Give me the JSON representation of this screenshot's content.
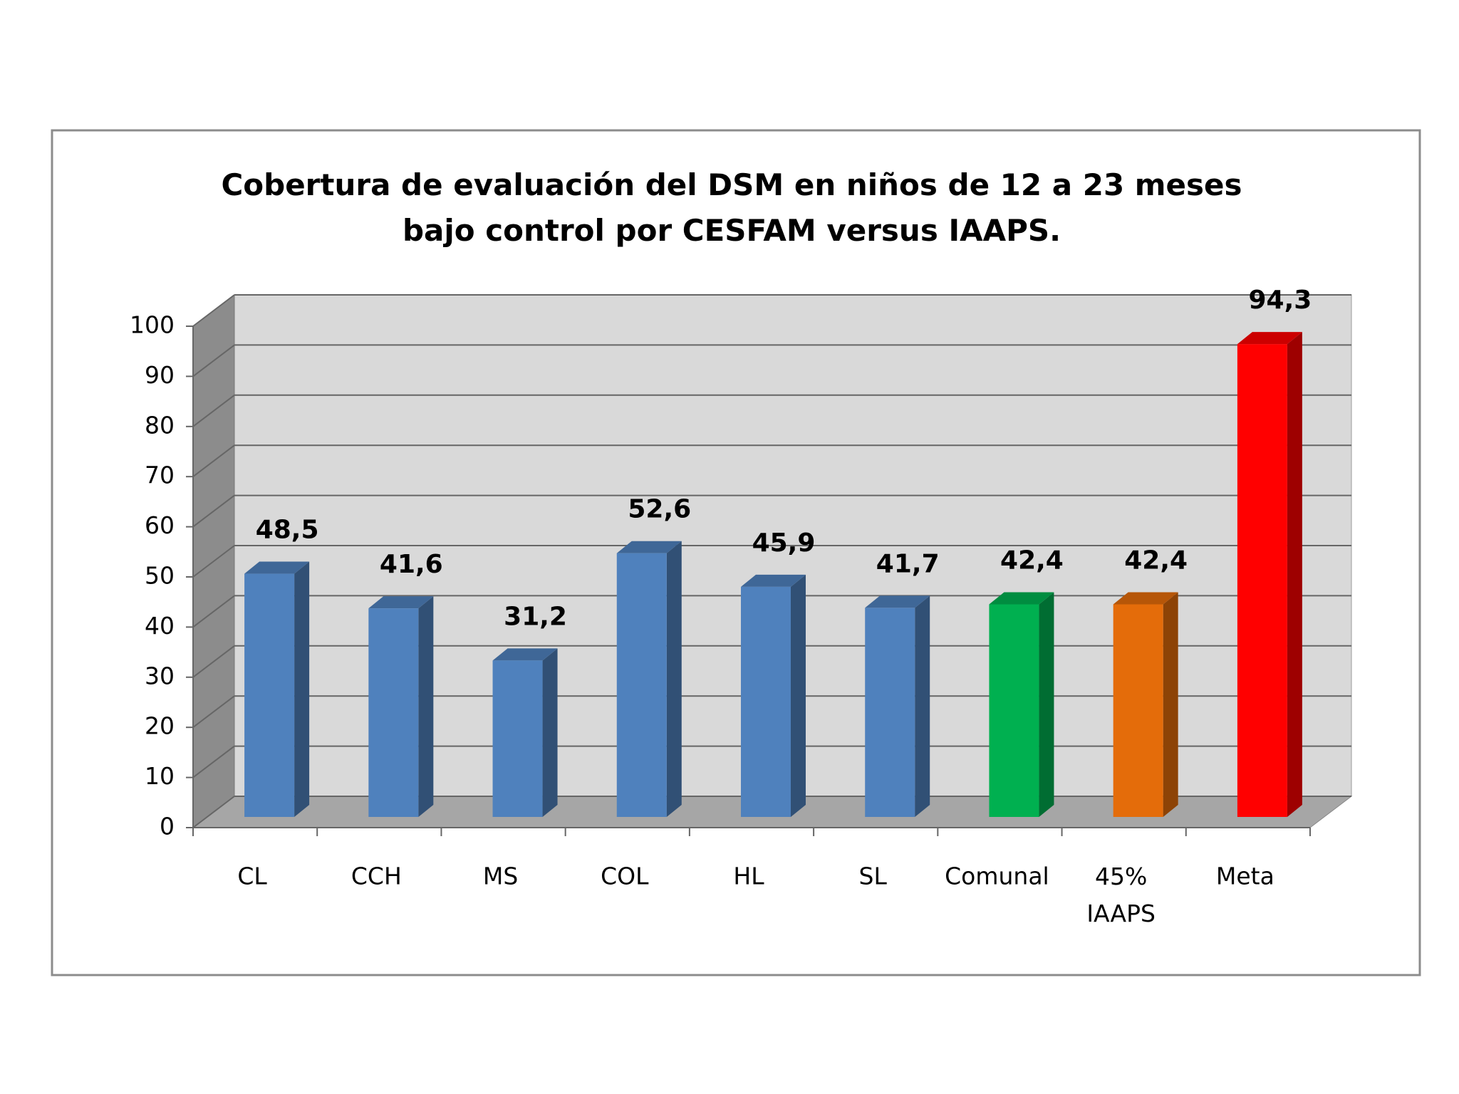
{
  "chart_data": {
    "type": "bar3d",
    "title": "Cobertura de evaluación del DSM en niños de 12 a 23 meses bajo control por CESFAM versus IAAPS.",
    "categories": [
      "CL",
      "CCH",
      "MS",
      "COL",
      "HL",
      "SL",
      "Comunal",
      "45% IAAPS",
      "Meta"
    ],
    "values": [
      48.5,
      41.6,
      31.2,
      52.6,
      45.9,
      41.7,
      42.4,
      42.4,
      94.3
    ],
    "value_labels": [
      "48,5",
      "41,6",
      "31,2",
      "52,6",
      "45,9",
      "41,7",
      "42,4",
      "42,4",
      "94,3"
    ],
    "colors": [
      "#4f81bd",
      "#4f81bd",
      "#4f81bd",
      "#4f81bd",
      "#4f81bd",
      "#4f81bd",
      "#00b050",
      "#e46c0a",
      "#ff0000"
    ],
    "ylim": [
      0,
      100
    ],
    "yticks": [
      0,
      10,
      20,
      30,
      40,
      50,
      60,
      70,
      80,
      90,
      100
    ],
    "grid": true
  }
}
